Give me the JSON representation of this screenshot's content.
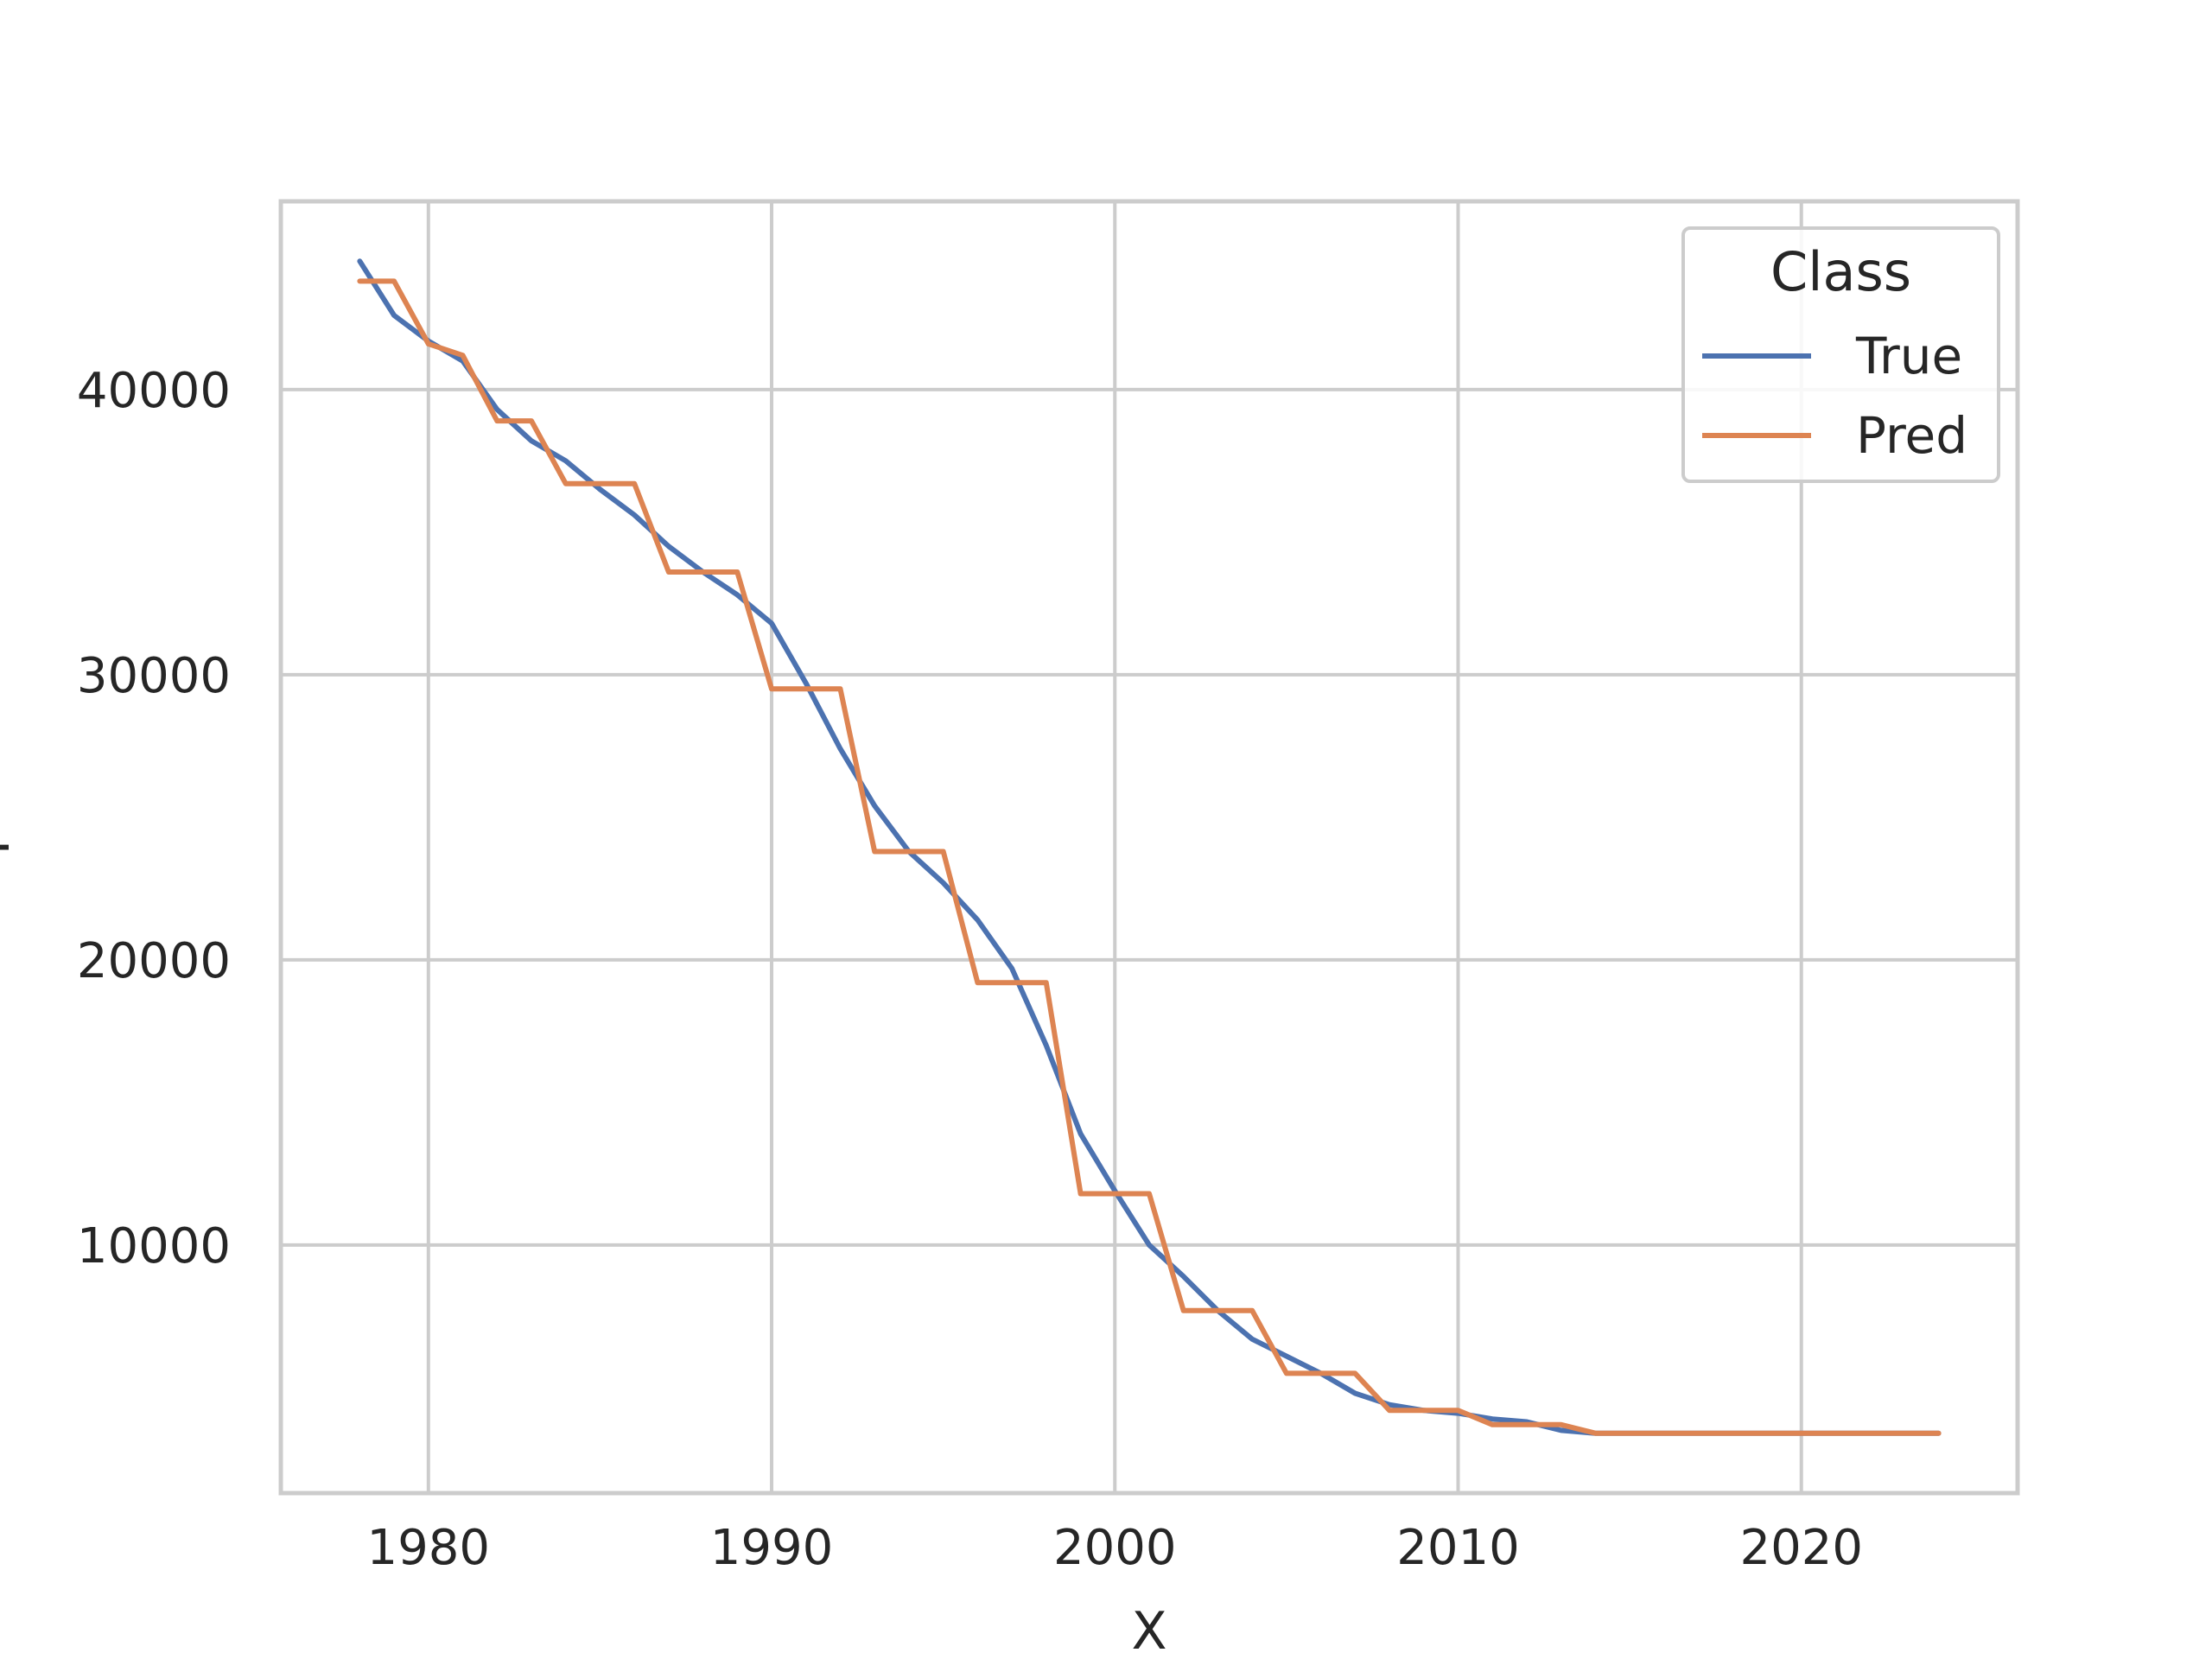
{
  "chart_data": {
    "type": "line",
    "title": "",
    "xlabel": "X",
    "ylabel": "Y",
    "xlim": [
      1975.7,
      2026.3
    ],
    "ylim": [
      1300,
      46600
    ],
    "xticks": [
      1980,
      1990,
      2000,
      2010,
      2020
    ],
    "yticks": [
      10000,
      20000,
      30000,
      40000
    ],
    "grid": true,
    "legend": {
      "title": "Class",
      "position": "top-right"
    },
    "series": [
      {
        "name": "True",
        "color": "#4c72b0",
        "x": [
          1978,
          1979,
          1980,
          1981,
          1982,
          1983,
          1984,
          1985,
          1986,
          1987,
          1988,
          1989,
          1990,
          1991,
          1992,
          1993,
          1994,
          1995,
          1996,
          1997,
          1998,
          1999,
          2000,
          2001,
          2002,
          2003,
          2004,
          2005,
          2006,
          2007,
          2008,
          2009,
          2010,
          2011,
          2012,
          2013,
          2014,
          2015,
          2016,
          2017,
          2018,
          2019,
          2020,
          2021,
          2022,
          2023,
          2024
        ],
        "y": [
          44500,
          42600,
          41700,
          41000,
          39300,
          38200,
          37500,
          36500,
          35600,
          34500,
          33600,
          32800,
          31800,
          29700,
          27400,
          25400,
          23800,
          22700,
          21400,
          19700,
          17000,
          13900,
          11900,
          10000,
          8900,
          7700,
          6700,
          6100,
          5500,
          4800,
          4400,
          4200,
          4100,
          3900,
          3800,
          3500,
          3400,
          3400,
          3400,
          3400,
          3400,
          3400,
          3400,
          3400,
          3400,
          3400,
          3400
        ]
      },
      {
        "name": "Pred",
        "color": "#dd8452",
        "x": [
          1978,
          1979,
          1980,
          1981,
          1982,
          1983,
          1984,
          1985,
          1986,
          1987,
          1988,
          1989,
          1990,
          1991,
          1992,
          1993,
          1994,
          1995,
          1996,
          1997,
          1998,
          1999,
          2000,
          2001,
          2002,
          2003,
          2004,
          2005,
          2006,
          2007,
          2008,
          2009,
          2010,
          2011,
          2012,
          2013,
          2014,
          2015,
          2016,
          2017,
          2018,
          2019,
          2020,
          2021,
          2022,
          2023,
          2024
        ],
        "y": [
          43800,
          43800,
          41600,
          41200,
          38900,
          38900,
          36700,
          36700,
          36700,
          33600,
          33600,
          33600,
          29500,
          29500,
          29500,
          23800,
          23800,
          23800,
          19200,
          19200,
          19200,
          11800,
          11800,
          11800,
          7700,
          7700,
          7700,
          5500,
          5500,
          5500,
          4200,
          4200,
          4200,
          3700,
          3700,
          3700,
          3400,
          3400,
          3400,
          3400,
          3400,
          3400,
          3400,
          3400,
          3400,
          3400,
          3400
        ]
      }
    ]
  }
}
